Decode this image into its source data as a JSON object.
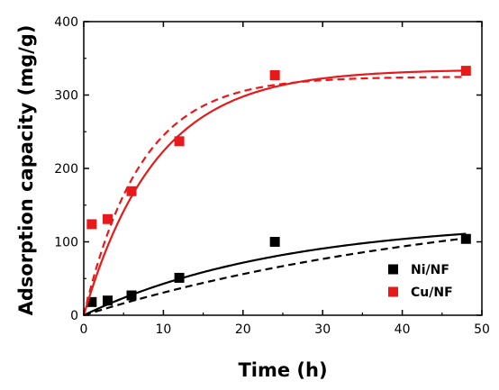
{
  "chart_data": {
    "type": "scatter",
    "title": "",
    "xlabel": "Time (h)",
    "ylabel": "Adsorption capacity (mg/g)",
    "xlim": [
      0,
      50
    ],
    "ylim": [
      0,
      400
    ],
    "xticks": [
      0,
      10,
      20,
      30,
      40,
      50
    ],
    "yticks": [
      0,
      100,
      200,
      300,
      400
    ],
    "grid": false,
    "legend_position": "lower-right",
    "series": [
      {
        "name": "Ni/NF",
        "color": "#000000",
        "marker": "square",
        "x": [
          1,
          3,
          6,
          12,
          24,
          48
        ],
        "y": [
          18,
          20,
          27,
          51,
          100,
          104
        ],
        "fit_solid": {
          "qe": 130,
          "k": 0.04
        },
        "fit_dashed": {
          "qe": 170,
          "k": 0.02
        }
      },
      {
        "name": "Cu/NF",
        "color": "#e8191a",
        "marker": "square",
        "x": [
          1,
          3,
          6,
          12,
          24,
          48
        ],
        "y": [
          124,
          131,
          169,
          237,
          327,
          333
        ],
        "fit_solid": {
          "qe": 335,
          "k": 0.11
        },
        "fit_dashed": {
          "qe": 325,
          "k": 0.14
        }
      }
    ]
  }
}
